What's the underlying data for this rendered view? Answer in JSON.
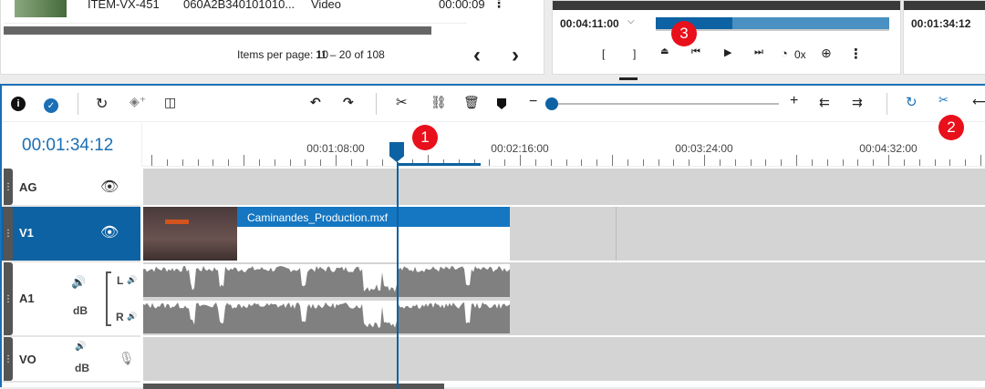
{
  "assets": {
    "row": {
      "id": "ITEM-VX-451",
      "umid": "060A2B340101010...",
      "type": "Video",
      "duration": "00:00:09"
    },
    "pagination": {
      "items_per_page": "Items per page: 10",
      "range": "11 – 20 of 108",
      "prev": "‹",
      "next": "›"
    }
  },
  "player": {
    "timecode": "00:04:11:00",
    "mark_in": "[",
    "mark_out": "]",
    "speed": "0x",
    "progress": 0.33,
    "second_timecode": "00:01:34:12"
  },
  "timeline": {
    "current_timecode": "00:01:34:12",
    "ruler_labels": [
      "00:01:08:00",
      "00:02:16:00",
      "00:03:24:00",
      "00:04:32:00"
    ],
    "zoom_level": 0.02,
    "tracks": [
      {
        "name": "AG"
      },
      {
        "name": "V1",
        "clip": "Caminandes_Production.mxf"
      },
      {
        "name": "A1",
        "db": "dB",
        "left": "L",
        "right": "R"
      },
      {
        "name": "VO",
        "db": "dB"
      }
    ]
  },
  "badges": [
    "1",
    "2",
    "3"
  ],
  "colors": {
    "accent": "#0060a8",
    "badge": "#e8101a",
    "lane": "#d4d4d4",
    "waveform": "#808080"
  }
}
